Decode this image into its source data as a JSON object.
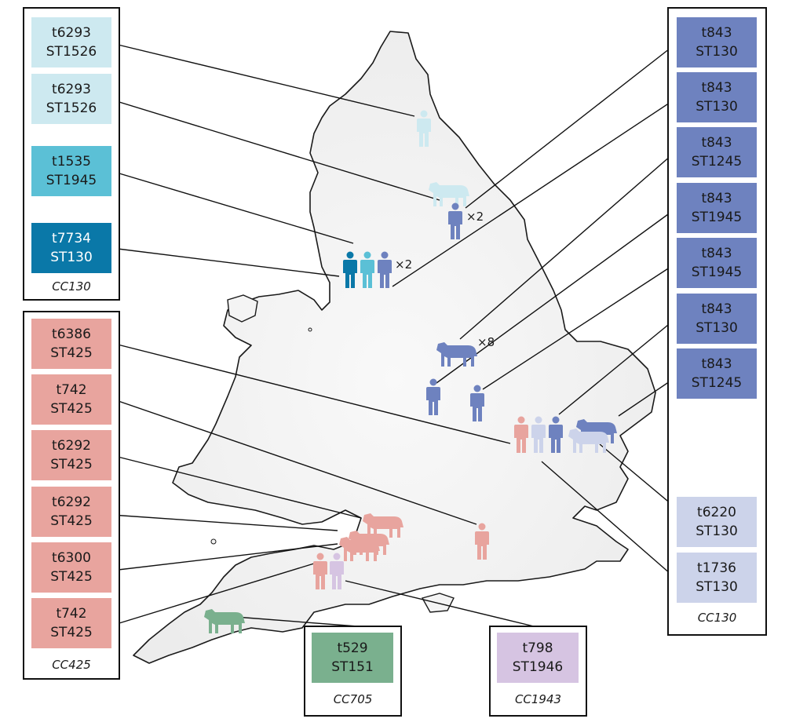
{
  "colors": {
    "cc130_light": "#cde9f0",
    "cc130_mid": "#5bc0d6",
    "cc130_dark": "#0a78a8",
    "cc130_blue": "#6e82bf",
    "cc130_lavender": "#ccd3ea",
    "cc425_red": "#e8a49e",
    "cc705_green": "#7ab08e",
    "cc1943_purple": "#d6c4e2",
    "map_fill": "#f4f4f4",
    "map_outline": "#1a1a1a"
  },
  "groups": {
    "left_top": {
      "caption": "CC130",
      "items": [
        {
          "spa": "t6293",
          "st": "ST1526",
          "color_key": "cc130_light"
        },
        {
          "spa": "t6293",
          "st": "ST1526",
          "color_key": "cc130_light"
        },
        {
          "spa": "t1535",
          "st": "ST1945",
          "color_key": "cc130_mid"
        },
        {
          "spa": "t7734",
          "st": "ST130",
          "color_key": "cc130_dark"
        }
      ]
    },
    "left_bottom": {
      "caption": "CC425",
      "items": [
        {
          "spa": "t6386",
          "st": "ST425",
          "color_key": "cc425_red"
        },
        {
          "spa": "t742",
          "st": "ST425",
          "color_key": "cc425_red"
        },
        {
          "spa": "t6292",
          "st": "ST425",
          "color_key": "cc425_red"
        },
        {
          "spa": "t6292",
          "st": "ST425",
          "color_key": "cc425_red"
        },
        {
          "spa": "t6300",
          "st": "ST425",
          "color_key": "cc425_red"
        },
        {
          "spa": "t742",
          "st": "ST425",
          "color_key": "cc425_red"
        }
      ]
    },
    "right": {
      "caption": "CC130",
      "items": [
        {
          "spa": "t843",
          "st": "ST130",
          "color_key": "cc130_blue"
        },
        {
          "spa": "t843",
          "st": "ST130",
          "color_key": "cc130_blue"
        },
        {
          "spa": "t843",
          "st": "ST1245",
          "color_key": "cc130_blue"
        },
        {
          "spa": "t843",
          "st": "ST1945",
          "color_key": "cc130_blue"
        },
        {
          "spa": "t843",
          "st": "ST1945",
          "color_key": "cc130_blue"
        },
        {
          "spa": "t843",
          "st": "ST130",
          "color_key": "cc130_blue"
        },
        {
          "spa": "t843",
          "st": "ST1245",
          "color_key": "cc130_blue"
        },
        {
          "spa": "t6220",
          "st": "ST130",
          "color_key": "cc130_lavender"
        },
        {
          "spa": "t1736",
          "st": "ST130",
          "color_key": "cc130_lavender"
        }
      ]
    },
    "bottom_green": {
      "caption": "CC705",
      "items": [
        {
          "spa": "t529",
          "st": "ST151",
          "color_key": "cc705_green"
        }
      ]
    },
    "bottom_purple": {
      "caption": "CC1943",
      "items": [
        {
          "spa": "t798",
          "st": "ST1946",
          "color_key": "cc1943_purple"
        }
      ]
    }
  },
  "multipliers": {
    "northeast_human": "×2",
    "northwest_humans": "×2",
    "midlands_cow": "×8"
  },
  "icons": [
    {
      "kind": "human",
      "color_key": "cc130_light"
    },
    {
      "kind": "cow",
      "color_key": "cc130_light"
    },
    {
      "kind": "human",
      "color_key": "cc130_blue"
    },
    {
      "kind": "human",
      "color_key": "cc130_dark"
    },
    {
      "kind": "human",
      "color_key": "cc130_mid"
    },
    {
      "kind": "human",
      "color_key": "cc130_blue"
    },
    {
      "kind": "cow",
      "color_key": "cc130_blue"
    },
    {
      "kind": "human",
      "color_key": "cc130_blue"
    },
    {
      "kind": "human",
      "color_key": "cc130_blue"
    },
    {
      "kind": "human",
      "color_key": "cc425_red"
    },
    {
      "kind": "human",
      "color_key": "cc130_lavender"
    },
    {
      "kind": "human",
      "color_key": "cc130_blue"
    },
    {
      "kind": "cow",
      "color_key": "cc130_blue"
    },
    {
      "kind": "cow",
      "color_key": "cc130_lavender"
    },
    {
      "kind": "cow",
      "color_key": "cc425_red"
    },
    {
      "kind": "cow",
      "color_key": "cc425_red"
    },
    {
      "kind": "cow",
      "color_key": "cc425_red"
    },
    {
      "kind": "human",
      "color_key": "cc425_red"
    },
    {
      "kind": "human",
      "color_key": "cc425_red"
    },
    {
      "kind": "human",
      "color_key": "cc1943_purple"
    },
    {
      "kind": "cow",
      "color_key": "cc705_green"
    }
  ]
}
